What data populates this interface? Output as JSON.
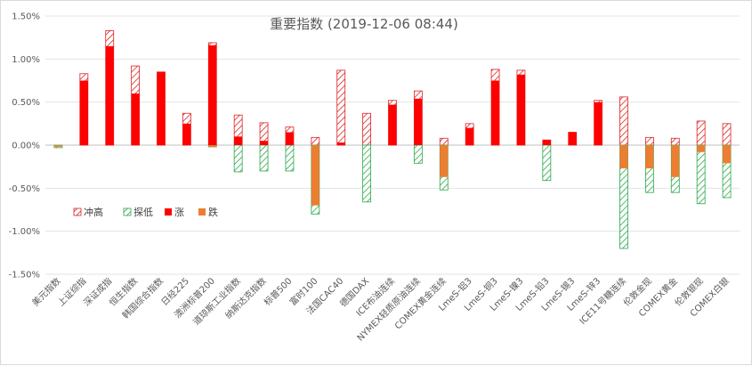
{
  "chart_data": {
    "type": "bar",
    "title": "重要指数 (2019-12-06 08:44)",
    "xlabel": "",
    "ylabel": "",
    "ylim": [
      -1.5,
      1.5
    ],
    "yticks": [
      -1.5,
      -1.0,
      -0.5,
      0.0,
      0.5,
      1.0,
      1.5
    ],
    "yticklabels": [
      "-1.50%",
      "-1.00%",
      "-0.50%",
      "0.00%",
      "0.50%",
      "1.00%",
      "1.50%"
    ],
    "grid": true,
    "legend_position": "left-middle",
    "categories": [
      "美元指数",
      "上证综指",
      "深证成指",
      "恒生指数",
      "韩国综合指数",
      "日经225",
      "澳洲标普200",
      "道琼斯工业指数",
      "纳斯达克指数",
      "标普500",
      "富时100",
      "法国CAC40",
      "德国DAX",
      "ICE布油连续",
      "NYMEX轻质原油连续",
      "COMEX黄金连续",
      "LmeS-铝3",
      "LmeS-铜3",
      "LmeS-镍3",
      "LmeS-铅3",
      "LmeS-锡3",
      "LmeS-锌3",
      "ICE11号糖连续",
      "伦敦金现",
      "COMEX黄金",
      "伦敦银现",
      "COMEX白银"
    ],
    "series": [
      {
        "name": "冲高",
        "color": "#e02020",
        "pattern": "diagonal-hatch",
        "values": [
          0.0,
          0.83,
          1.33,
          0.92,
          0.85,
          0.37,
          1.19,
          0.35,
          0.26,
          0.21,
          0.09,
          0.87,
          0.37,
          0.52,
          0.63,
          0.08,
          0.25,
          0.88,
          0.87,
          0.06,
          0.15,
          0.52,
          0.56,
          0.09,
          0.08,
          0.28,
          0.25
        ]
      },
      {
        "name": "探低",
        "color": "#2aa84a",
        "pattern": "diagonal-hatch",
        "values": [
          -0.03,
          0.0,
          0.0,
          0.0,
          0.0,
          0.0,
          -0.02,
          -0.31,
          -0.3,
          -0.3,
          -0.8,
          0.0,
          -0.66,
          0.0,
          -0.21,
          -0.52,
          0.0,
          0.0,
          0.0,
          -0.41,
          0.0,
          0.0,
          -1.2,
          -0.55,
          -0.55,
          -0.68,
          -0.61
        ]
      },
      {
        "name": "涨",
        "color": "#ff0000",
        "pattern": "solid",
        "values": [
          0.0,
          0.75,
          1.15,
          0.6,
          0.85,
          0.25,
          1.16,
          0.1,
          0.05,
          0.15,
          0.0,
          0.03,
          0.0,
          0.47,
          0.54,
          0.0,
          0.2,
          0.75,
          0.82,
          0.06,
          0.15,
          0.5,
          0.0,
          0.0,
          0.0,
          0.0,
          0.0
        ]
      },
      {
        "name": "跌",
        "color": "#ed7d31",
        "pattern": "solid",
        "values": [
          -0.02,
          0.0,
          0.0,
          0.0,
          0.0,
          0.0,
          -0.02,
          0.0,
          0.0,
          0.0,
          -0.7,
          0.0,
          0.0,
          0.0,
          0.0,
          -0.37,
          0.0,
          0.0,
          0.0,
          0.0,
          0.0,
          0.0,
          -0.27,
          -0.27,
          -0.37,
          -0.08,
          -0.21
        ]
      }
    ]
  }
}
